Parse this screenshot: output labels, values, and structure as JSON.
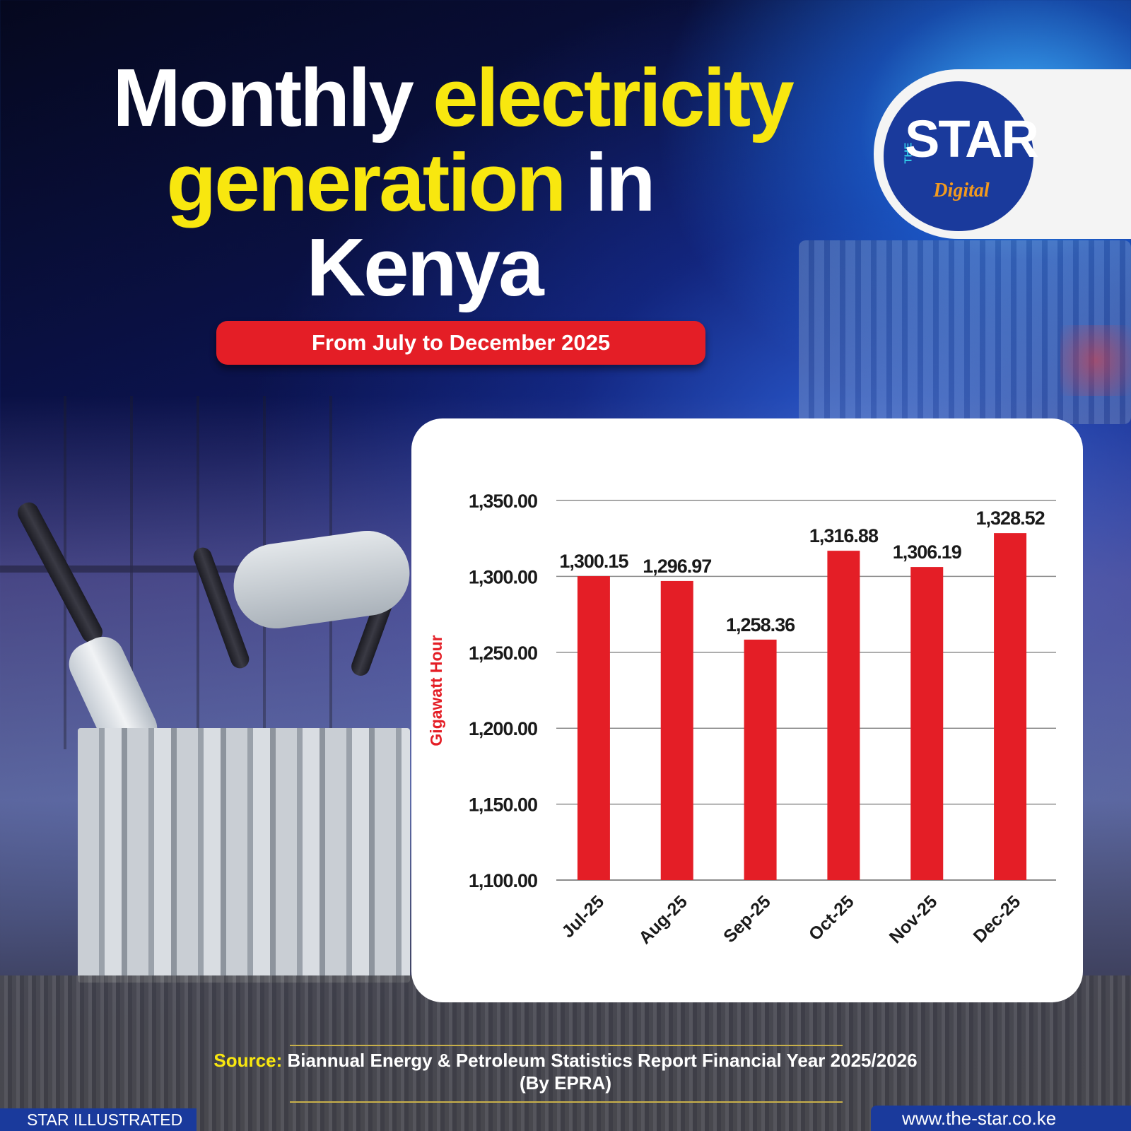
{
  "header": {
    "title_line1_white": "Monthly ",
    "title_line1_yellow": "electricity",
    "title_line2_yellow": "generation",
    "title_line2_white": " in",
    "title_line3_white": "Kenya",
    "subtitle": "From July to December 2025"
  },
  "logo": {
    "the": "THE",
    "name": "STAR",
    "digital": "Digital"
  },
  "chart_data": {
    "type": "bar",
    "categories": [
      "Jul-25",
      "Aug-25",
      "Sep-25",
      "Oct-25",
      "Nov-25",
      "Dec-25"
    ],
    "values": [
      1300.15,
      1296.97,
      1258.36,
      1316.88,
      1306.19,
      1328.52
    ],
    "value_labels": [
      "1,300.15",
      "1,296.97",
      "1,258.36",
      "1,316.88",
      "1,306.19",
      "1,328.52"
    ],
    "ylabel": "Gigawatt Hour",
    "ylim": [
      1100,
      1350
    ],
    "yticks": [
      1100,
      1150,
      1200,
      1250,
      1300,
      1350
    ],
    "ytick_labels": [
      "1,100.00",
      "1,150.00",
      "1,200.00",
      "1,250.00",
      "1,300.00",
      "1,350.00"
    ],
    "grid": true,
    "bar_color": "#e41e26"
  },
  "footer": {
    "source_label": "Source:",
    "source_text": " Biannual Energy & Petroleum  Statistics Report Financial Year 2025/2026 (By EPRA)",
    "left_tag": "STAR ILLUSTRATED",
    "right_tag": "www.the-star.co.ke"
  },
  "colors": {
    "accent_yellow": "#f8e70f",
    "accent_red": "#e41e26",
    "brand_blue": "#1a3a9c"
  }
}
